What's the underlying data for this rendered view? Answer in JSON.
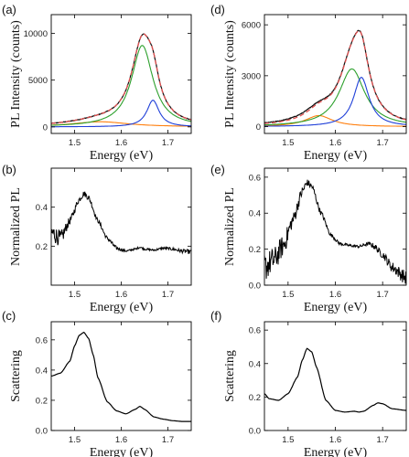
{
  "chart_data": [
    {
      "panel": "(a)",
      "type": "line",
      "xlabel": "Energy (eV)",
      "ylabel": "PL Intensity (counts)",
      "xlim": [
        1.45,
        1.75
      ],
      "ylim": [
        -700,
        12000
      ],
      "xticks": [
        1.5,
        1.6,
        1.7
      ],
      "yticks": [
        0,
        5000,
        10000
      ],
      "kind": "pl_fit",
      "fits": [
        {
          "color": "#ff7f0e",
          "center": 1.555,
          "width": 0.075,
          "amp": 550
        },
        {
          "color": "#2ca02c",
          "center": 1.645,
          "width": 0.028,
          "amp": 8700
        },
        {
          "color": "#1f3fd8",
          "center": 1.668,
          "width": 0.016,
          "amp": 2850
        }
      ],
      "sum_color": "#e05050",
      "data_color": "#111111"
    },
    {
      "panel": "(b)",
      "type": "line",
      "xlabel": "Energy (eV)",
      "ylabel": "Normalized PL",
      "xlim": [
        1.45,
        1.75
      ],
      "ylim": [
        0.0,
        0.6
      ],
      "xticks": [
        1.5,
        1.6,
        1.7
      ],
      "yticks": [
        0.2,
        0.4
      ],
      "kind": "noisy",
      "x": [
        1.45,
        1.47,
        1.49,
        1.51,
        1.52,
        1.53,
        1.55,
        1.57,
        1.59,
        1.61,
        1.63,
        1.64,
        1.65,
        1.67,
        1.69,
        1.71,
        1.73,
        1.75
      ],
      "y": [
        0.27,
        0.24,
        0.33,
        0.44,
        0.47,
        0.45,
        0.33,
        0.24,
        0.19,
        0.175,
        0.185,
        0.195,
        0.185,
        0.18,
        0.19,
        0.185,
        0.175,
        0.17
      ],
      "noise": [
        0.05,
        0.04,
        0.02,
        0.015,
        0.015,
        0.015,
        0.01,
        0.01,
        0.01,
        0.005,
        0.005,
        0.005,
        0.005,
        0.005,
        0.006,
        0.008,
        0.01,
        0.012
      ]
    },
    {
      "panel": "(c)",
      "type": "line",
      "xlabel": "Energy (eV)",
      "ylabel": "Scattering",
      "xlim": [
        1.45,
        1.75
      ],
      "ylim": [
        0.0,
        0.72
      ],
      "xticks": [
        1.5,
        1.6,
        1.7
      ],
      "yticks": [
        0.0,
        0.2,
        0.4,
        0.6
      ],
      "kind": "smooth",
      "x": [
        1.45,
        1.47,
        1.49,
        1.5,
        1.51,
        1.52,
        1.53,
        1.54,
        1.55,
        1.57,
        1.59,
        1.61,
        1.63,
        1.64,
        1.65,
        1.67,
        1.69,
        1.71,
        1.73,
        1.75
      ],
      "y": [
        0.36,
        0.38,
        0.46,
        0.56,
        0.63,
        0.65,
        0.61,
        0.5,
        0.35,
        0.19,
        0.13,
        0.11,
        0.14,
        0.16,
        0.14,
        0.09,
        0.075,
        0.065,
        0.06,
        0.06
      ]
    },
    {
      "panel": "(d)",
      "type": "line",
      "xlabel": "Energy (eV)",
      "ylabel": "PL Intensity (counts)",
      "xlim": [
        1.45,
        1.75
      ],
      "ylim": [
        -400,
        6600
      ],
      "xticks": [
        1.5,
        1.6,
        1.7
      ],
      "yticks": [
        0,
        3000,
        6000
      ],
      "kind": "pl_fit",
      "fits": [
        {
          "color": "#ff7f0e",
          "center": 1.565,
          "width": 0.035,
          "amp": 650
        },
        {
          "color": "#2ca02c",
          "center": 1.635,
          "width": 0.033,
          "amp": 3400
        },
        {
          "color": "#1f3fd8",
          "center": 1.655,
          "width": 0.02,
          "amp": 2900
        }
      ],
      "sum_color": "#e05050",
      "data_color": "#111111",
      "extra_shoulder": {
        "center": 1.54,
        "width": 0.06,
        "amp": 700
      }
    },
    {
      "panel": "(e)",
      "type": "line",
      "xlabel": "Energy (eV)",
      "ylabel": "Normalized PL",
      "xlim": [
        1.45,
        1.75
      ],
      "ylim": [
        0.0,
        0.65
      ],
      "xticks": [
        1.5,
        1.6,
        1.7
      ],
      "yticks": [
        0.0,
        0.2,
        0.4,
        0.6
      ],
      "kind": "noisy",
      "x": [
        1.45,
        1.47,
        1.49,
        1.51,
        1.53,
        1.54,
        1.55,
        1.57,
        1.59,
        1.61,
        1.63,
        1.65,
        1.67,
        1.68,
        1.7,
        1.72,
        1.75
      ],
      "y": [
        0.1,
        0.14,
        0.22,
        0.36,
        0.52,
        0.57,
        0.55,
        0.4,
        0.28,
        0.23,
        0.22,
        0.215,
        0.23,
        0.22,
        0.17,
        0.1,
        0.04
      ],
      "noise": [
        0.08,
        0.07,
        0.06,
        0.04,
        0.03,
        0.02,
        0.02,
        0.015,
        0.01,
        0.008,
        0.008,
        0.008,
        0.01,
        0.015,
        0.02,
        0.03,
        0.04
      ]
    },
    {
      "panel": "(f)",
      "type": "line",
      "xlabel": "Energy (eV)",
      "ylabel": "Scattering",
      "xlim": [
        1.45,
        1.75
      ],
      "ylim": [
        0.0,
        0.65
      ],
      "xticks": [
        1.5,
        1.6,
        1.7
      ],
      "yticks": [
        0.0,
        0.2,
        0.4,
        0.6
      ],
      "kind": "smooth",
      "x": [
        1.45,
        1.46,
        1.48,
        1.5,
        1.52,
        1.53,
        1.54,
        1.55,
        1.56,
        1.58,
        1.6,
        1.62,
        1.64,
        1.65,
        1.66,
        1.68,
        1.69,
        1.7,
        1.72,
        1.75
      ],
      "y": [
        0.22,
        0.19,
        0.18,
        0.22,
        0.32,
        0.42,
        0.49,
        0.47,
        0.38,
        0.18,
        0.12,
        0.11,
        0.115,
        0.11,
        0.115,
        0.15,
        0.165,
        0.16,
        0.13,
        0.12
      ]
    }
  ]
}
